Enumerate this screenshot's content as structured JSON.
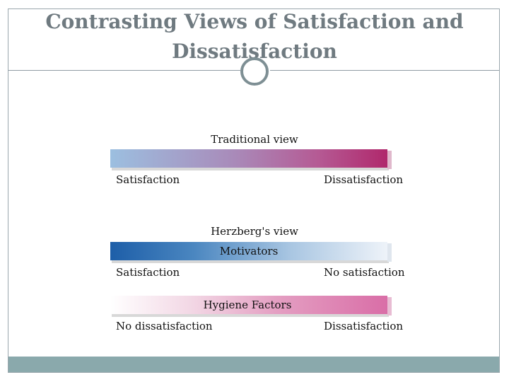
{
  "slide": {
    "title": "Contrasting Views of Satisfaction and Dissatisfaction"
  },
  "traditional": {
    "heading": "Traditional view",
    "left_label": "Satisfaction",
    "right_label": "Dissatisfaction"
  },
  "herzberg": {
    "heading": "Herzberg's view",
    "motivators": {
      "label": "Motivators",
      "left_label": "Satisfaction",
      "right_label": "No satisfaction"
    },
    "hygiene": {
      "label": "Hygiene Factors",
      "left_label": "No dissatisfaction",
      "right_label": "Dissatisfaction"
    }
  },
  "colors": {
    "title_text": "#6f7a80",
    "footer": "#8aa9ac",
    "traditional_start": "#9cbfe0",
    "traditional_end": "#b0286c",
    "motivators_start": "#1d5ea8",
    "motivators_end": "#eef3f9",
    "hygiene_start": "#ffffff",
    "hygiene_end": "#d96ea7"
  }
}
